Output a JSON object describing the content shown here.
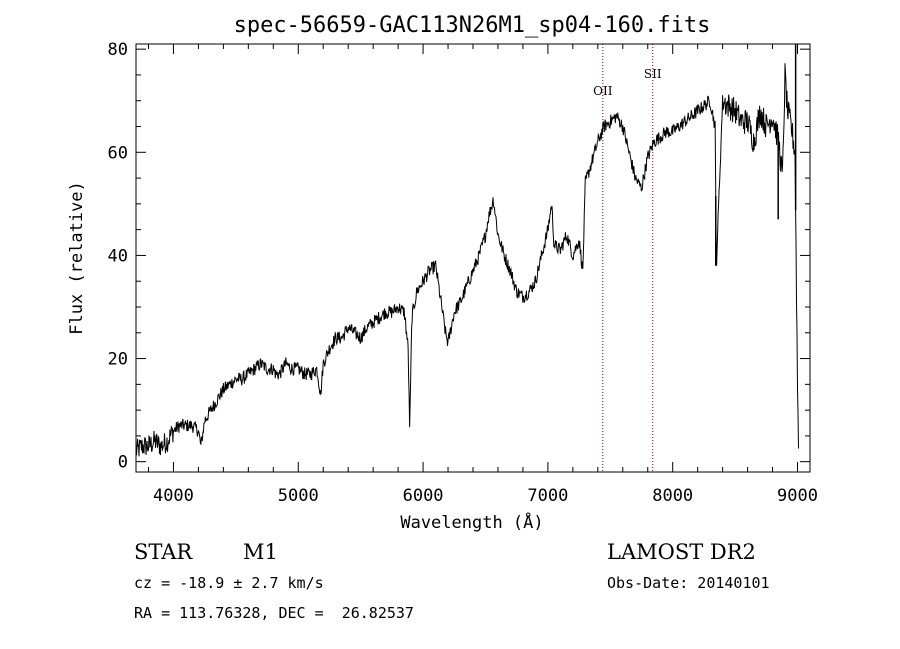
{
  "chart_data": {
    "type": "line",
    "title": "spec-56659-GAC113N26M1_sp04-160.fits",
    "xlabel": "Wavelength (Å)",
    "ylabel": "Flux (relative)",
    "xlim": [
      3700,
      9100
    ],
    "ylim": [
      -2,
      81
    ],
    "x_ticks": [
      4000,
      5000,
      6000,
      7000,
      8000,
      9000
    ],
    "y_ticks": [
      0,
      20,
      40,
      60,
      80
    ],
    "grid": false,
    "line_color": "#000000",
    "marker_color": "#8b0000",
    "lines": [
      {
        "label": "OII",
        "x": 7440
      },
      {
        "label": "SII",
        "x": 7840
      }
    ],
    "series": [
      {
        "x": [
          3700,
          3750,
          3800,
          3850,
          3900,
          3950,
          4000,
          4050,
          4100,
          4150,
          4200,
          4220,
          4250,
          4300,
          4350,
          4400,
          4450,
          4500,
          4550,
          4600,
          4650,
          4700,
          4750,
          4800,
          4820,
          4850,
          4900,
          4950,
          5000,
          5050,
          5100,
          5150,
          5180,
          5200,
          5250,
          5300,
          5350,
          5400,
          5450,
          5500,
          5550,
          5600,
          5650,
          5700,
          5750,
          5800,
          5850,
          5880,
          5893,
          5910,
          5950,
          6000,
          6050,
          6100,
          6150,
          6180,
          6200,
          6250,
          6300,
          6350,
          6400,
          6450,
          6500,
          6520,
          6563,
          6600,
          6650,
          6700,
          6750,
          6800,
          6850,
          6900,
          6950,
          7000,
          7030,
          7050,
          7100,
          7150,
          7200,
          7250,
          7280,
          7300,
          7350,
          7400,
          7450,
          7500,
          7550,
          7600,
          7650,
          7700,
          7750,
          7800,
          7850,
          7900,
          7950,
          8000,
          8050,
          8100,
          8150,
          8200,
          8250,
          8300,
          8340,
          8350,
          8400,
          8450,
          8500,
          8550,
          8600,
          8650,
          8700,
          8750,
          8800,
          8850,
          8880,
          8900,
          8920,
          8950,
          8980,
          9000,
          9010
        ],
        "y": [
          2,
          3,
          3,
          4,
          3,
          4,
          6,
          7,
          7,
          7,
          6,
          3,
          8,
          10,
          12,
          14,
          15,
          16,
          16,
          17,
          18,
          19,
          18,
          18,
          17,
          17,
          19,
          18,
          18,
          17,
          17,
          18,
          13,
          19,
          22,
          24,
          24,
          26,
          25,
          24,
          26,
          27,
          28,
          29,
          29,
          30,
          29,
          22,
          6,
          28,
          33,
          35,
          37,
          38,
          30,
          25,
          23,
          29,
          31,
          34,
          37,
          40,
          44,
          47,
          51,
          44,
          40,
          37,
          33,
          32,
          33,
          35,
          40,
          45,
          50,
          42,
          41,
          44,
          40,
          43,
          37,
          54,
          58,
          62,
          65,
          66,
          67,
          65,
          60,
          55,
          53,
          59,
          62,
          63,
          64,
          64,
          65,
          66,
          67,
          68,
          69,
          70,
          65,
          38,
          70,
          69,
          68,
          66,
          66,
          62,
          68,
          65,
          67,
          62,
          55,
          75,
          68,
          65,
          60,
          15,
          0
        ]
      }
    ]
  },
  "info": {
    "object_type": "STAR",
    "subclass": "M1",
    "survey": "LAMOST DR2",
    "cz": "cz = -18.9 ± 2.7 km/s",
    "obs_date": "Obs-Date: 20140101",
    "coords": "RA = 113.76328, DEC =  26.82537"
  }
}
